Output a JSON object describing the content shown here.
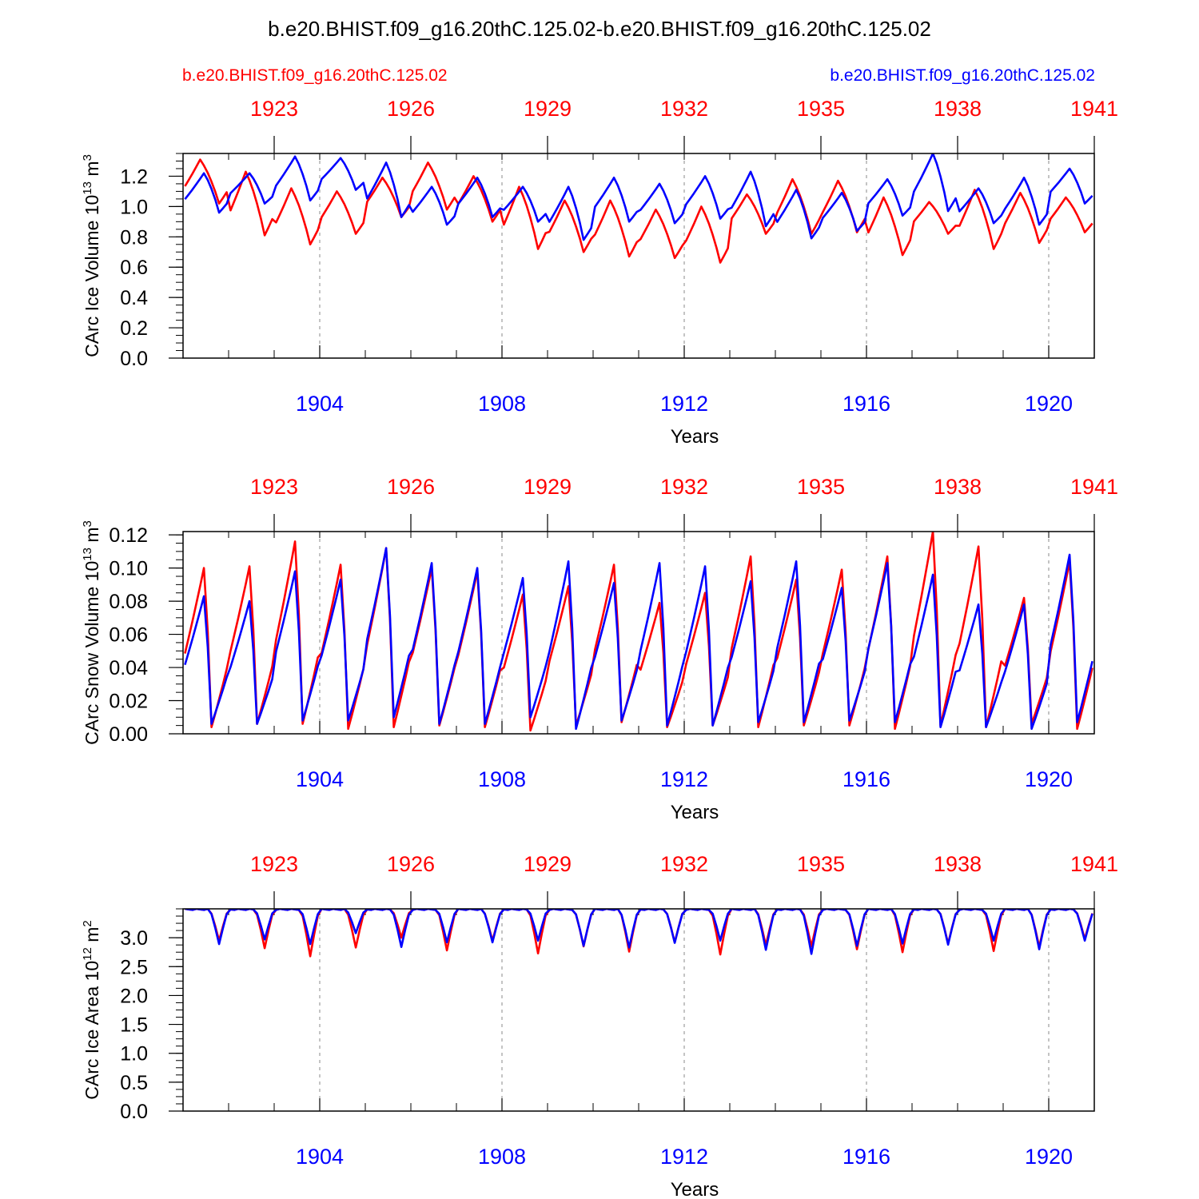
{
  "title": "b.e20.BHIST.f09_g16.20thC.125.02-b.e20.BHIST.f09_g16.20thC.125.02",
  "legend": {
    "left_label": "b.e20.BHIST.f09_g16.20thC.125.02",
    "right_label": "b.e20.BHIST.f09_g16.20thC.125.02"
  },
  "colors": {
    "series_a": "#ff0000",
    "series_b": "#0000ff",
    "axis": "#000000",
    "grid": "#888888"
  },
  "chart_data": [
    {
      "type": "line",
      "ylabel_main": "CArc Ice Volume 10",
      "ylabel_exp": "13",
      "ylabel_unit": " m",
      "ylabel_unit_exp": "3",
      "xlabel": "Years",
      "xlim_bottom": [
        1901,
        1921
      ],
      "ylim": [
        0,
        1.35
      ],
      "yticks": [
        0.0,
        0.2,
        0.4,
        0.6,
        0.8,
        1.0,
        1.2
      ],
      "ytick_labels": [
        "0.0",
        "0.2",
        "0.4",
        "0.6",
        "0.8",
        "1.0",
        "1.2"
      ],
      "bottom_ticks": [
        1904,
        1908,
        1912,
        1916,
        1920
      ],
      "top_ticks": [
        1923,
        1926,
        1929,
        1932,
        1935,
        1938,
        1941
      ],
      "grid": "dashed vertical at bottom year ticks",
      "series": [
        {
          "name": "b.e20.BHIST.f09_g16.20thC.125.02",
          "color": "#ff0000",
          "axis": "top",
          "monthly_pattern": {
            "start_year": 1921,
            "years": 20,
            "min_month": 9,
            "max_month": 4,
            "annual_min": [
              1.02,
              0.81,
              0.75,
              0.82,
              0.93,
              0.98,
              0.9,
              0.72,
              0.7,
              0.67,
              0.66,
              0.63,
              0.82,
              0.82,
              0.83,
              0.68,
              0.82,
              0.72,
              0.76,
              0.83
            ],
            "annual_max": [
              1.31,
              1.23,
              1.12,
              1.1,
              1.19,
              1.29,
              1.2,
              1.13,
              1.04,
              1.04,
              0.98,
              1.0,
              1.08,
              1.18,
              1.17,
              1.06,
              1.03,
              1.11,
              1.09,
              1.06
            ]
          }
        },
        {
          "name": "b.e20.BHIST.f09_g16.20thC.125.02",
          "color": "#0000ff",
          "axis": "bottom",
          "monthly_pattern": {
            "start_year": 1901,
            "years": 20,
            "min_month": 9,
            "max_month": 5,
            "annual_min": [
              0.96,
              1.02,
              1.04,
              1.11,
              0.93,
              0.88,
              0.93,
              0.9,
              0.78,
              0.9,
              0.89,
              0.92,
              0.87,
              0.79,
              0.84,
              0.94,
              0.97,
              0.89,
              0.88,
              1.02
            ],
            "annual_max": [
              1.22,
              1.22,
              1.33,
              1.32,
              1.29,
              1.13,
              1.19,
              1.13,
              1.13,
              1.19,
              1.15,
              1.2,
              1.23,
              1.11,
              1.09,
              1.18,
              1.35,
              1.12,
              1.19,
              1.25
            ]
          }
        }
      ]
    },
    {
      "type": "line",
      "ylabel_main": "CArc Snow Volume 10",
      "ylabel_exp": "13",
      "ylabel_unit": " m",
      "ylabel_unit_exp": "3",
      "xlabel": "Years",
      "xlim_bottom": [
        1901,
        1921
      ],
      "ylim": [
        0,
        0.122
      ],
      "yticks": [
        0.0,
        0.02,
        0.04,
        0.06,
        0.08,
        0.1,
        0.12
      ],
      "ytick_labels": [
        "0.00",
        "0.02",
        "0.04",
        "0.06",
        "0.08",
        "0.10",
        "0.12"
      ],
      "bottom_ticks": [
        1904,
        1908,
        1912,
        1916,
        1920
      ],
      "top_ticks": [
        1923,
        1926,
        1929,
        1932,
        1935,
        1938,
        1941
      ],
      "grid": "dashed vertical at bottom year ticks",
      "series": [
        {
          "name": "b.e20.BHIST.f09_g16.20thC.125.02",
          "color": "#ff0000",
          "axis": "top",
          "monthly_pattern": {
            "start_year": 1921,
            "years": 20,
            "min_month": 7,
            "max_month": 5,
            "annual_min": [
              0.004,
              0.006,
              0.006,
              0.003,
              0.004,
              0.005,
              0.004,
              0.002,
              0.005,
              0.007,
              0.004,
              0.005,
              0.004,
              0.005,
              0.005,
              0.003,
              0.005,
              0.004,
              0.006,
              0.003
            ],
            "annual_max": [
              0.1,
              0.101,
              0.116,
              0.102,
              0.112,
              0.1,
              0.098,
              0.084,
              0.089,
              0.102,
              0.079,
              0.085,
              0.107,
              0.093,
              0.099,
              0.107,
              0.122,
              0.113,
              0.082,
              0.104
            ]
          }
        },
        {
          "name": "b.e20.BHIST.f09_g16.20thC.125.02",
          "color": "#0000ff",
          "axis": "bottom",
          "monthly_pattern": {
            "start_year": 1901,
            "years": 20,
            "min_month": 7,
            "max_month": 5,
            "annual_min": [
              0.006,
              0.006,
              0.008,
              0.008,
              0.01,
              0.006,
              0.006,
              0.01,
              0.003,
              0.008,
              0.005,
              0.005,
              0.007,
              0.007,
              0.008,
              0.007,
              0.004,
              0.004,
              0.003,
              0.007
            ],
            "annual_max": [
              0.083,
              0.08,
              0.098,
              0.093,
              0.112,
              0.103,
              0.1,
              0.094,
              0.104,
              0.091,
              0.103,
              0.101,
              0.092,
              0.104,
              0.088,
              0.103,
              0.096,
              0.078,
              0.078,
              0.108
            ]
          }
        }
      ]
    },
    {
      "type": "line",
      "ylabel_main": "CArc Ice Area 10",
      "ylabel_exp": "12",
      "ylabel_unit": " m",
      "ylabel_unit_exp": "2",
      "xlabel": "Years",
      "xlim_bottom": [
        1901,
        1921
      ],
      "ylim": [
        0,
        3.5
      ],
      "yticks": [
        0.0,
        0.5,
        1.0,
        1.5,
        2.0,
        2.5,
        3.0
      ],
      "ytick_labels": [
        "0.0",
        "0.5",
        "1.0",
        "1.5",
        "2.0",
        "2.5",
        "3.0"
      ],
      "bottom_ticks": [
        1904,
        1908,
        1912,
        1916,
        1920
      ],
      "top_ticks": [
        1923,
        1926,
        1929,
        1932,
        1935,
        1938,
        1941
      ],
      "grid": "dashed vertical at bottom year ticks",
      "series": [
        {
          "name": "b.e20.BHIST.f09_g16.20thC.125.02",
          "color": "#ff0000",
          "axis": "top",
          "monthly_pattern": {
            "start_year": 1921,
            "years": 20,
            "min_month": 9,
            "max_month": 2,
            "plateau": 3.5,
            "annual_min": [
              2.95,
              2.82,
              2.68,
              2.83,
              3.0,
              2.78,
              2.95,
              2.73,
              2.85,
              2.76,
              2.92,
              2.71,
              2.87,
              2.85,
              2.8,
              2.75,
              2.9,
              2.77,
              2.84,
              2.98
            ]
          }
        },
        {
          "name": "b.e20.BHIST.f09_g16.20thC.125.02",
          "color": "#0000ff",
          "axis": "bottom",
          "monthly_pattern": {
            "start_year": 1901,
            "years": 20,
            "min_month": 9,
            "max_month": 2,
            "plateau": 3.5,
            "annual_min": [
              2.89,
              2.97,
              2.89,
              3.08,
              2.84,
              2.92,
              2.92,
              2.95,
              2.86,
              2.83,
              2.91,
              2.95,
              2.79,
              2.72,
              2.86,
              2.9,
              2.88,
              2.95,
              2.8,
              2.95
            ]
          }
        }
      ]
    }
  ]
}
